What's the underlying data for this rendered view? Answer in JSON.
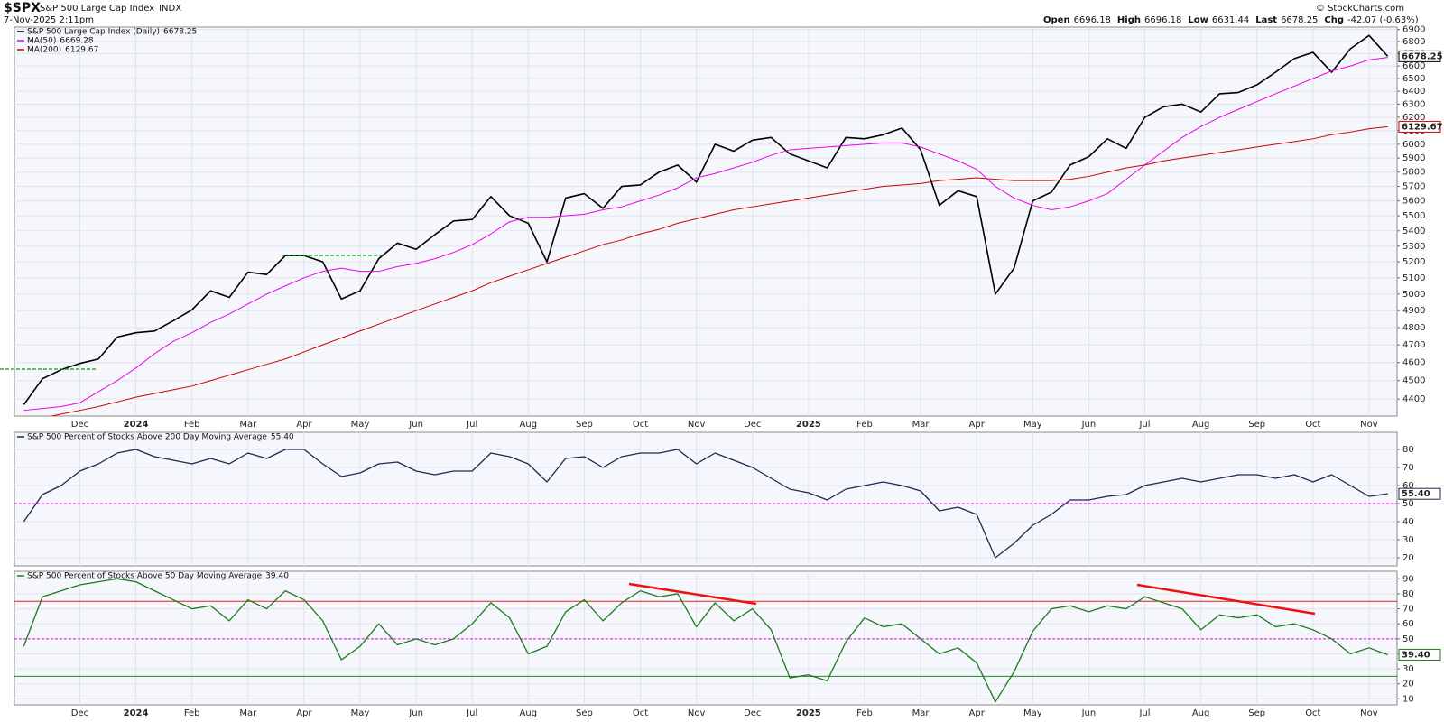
{
  "header": {
    "symbol": "$SPX",
    "name": "S&P 500 Large Cap Index",
    "exchange": "INDX",
    "timestamp": "7-Nov-2025 2:11pm",
    "source": "© StockCharts.com",
    "quote": [
      {
        "label": "Open",
        "value": 6696.18
      },
      {
        "label": "High",
        "value": 6696.18
      },
      {
        "label": "Low",
        "value": 6631.44
      },
      {
        "label": "Last",
        "value": 6678.25
      },
      {
        "label": "Chg",
        "value": "-42.07 (-0.63%)"
      }
    ]
  },
  "chart_data": [
    {
      "type": "line",
      "log": true,
      "grid": true,
      "categories": [
        null,
        null,
        null,
        "Dec",
        null,
        null,
        "2024",
        null,
        null,
        "Feb",
        null,
        null,
        "Mar",
        null,
        null,
        "Apr",
        null,
        null,
        "May",
        null,
        null,
        "Jun",
        null,
        null,
        "Jul",
        null,
        null,
        "Aug",
        null,
        null,
        "Sep",
        null,
        null,
        "Oct",
        null,
        null,
        "Nov",
        null,
        null,
        "Dec",
        null,
        null,
        "2025",
        null,
        null,
        "Feb",
        null,
        null,
        "Mar",
        null,
        null,
        "Apr",
        null,
        null,
        "May",
        null,
        null,
        "Jun",
        null,
        null,
        "Jul",
        null,
        null,
        "Aug",
        null,
        null,
        "Sep",
        null,
        null,
        "Oct",
        null,
        null,
        "Nov",
        null
      ],
      "ylim": [
        4310,
        6920
      ],
      "yticks": [
        4400,
        4500,
        4600,
        4700,
        4800,
        4900,
        5000,
        5100,
        5200,
        5300,
        5400,
        5500,
        5600,
        5700,
        5800,
        5900,
        6000,
        6100,
        6200,
        6300,
        6400,
        6500,
        6600,
        6700,
        6800,
        6900
      ],
      "series": [
        {
          "name": "S&P 500 Large Cap Index (Daily)",
          "color": "#000000",
          "width": 1.6,
          "values": [
            4370,
            4510,
            4560,
            4595,
            4620,
            4745,
            4770,
            4780,
            4840,
            4905,
            5020,
            4980,
            5135,
            5120,
            5240,
            5240,
            5200,
            4970,
            5020,
            5220,
            5320,
            5280,
            5375,
            5465,
            5475,
            5630,
            5500,
            5450,
            5200,
            5620,
            5650,
            5550,
            5700,
            5710,
            5800,
            5850,
            5730,
            6000,
            5950,
            6030,
            6050,
            5930,
            5880,
            5830,
            6050,
            6040,
            6070,
            6120,
            5960,
            5570,
            5670,
            5630,
            5000,
            5160,
            5600,
            5660,
            5850,
            5910,
            6040,
            5970,
            6200,
            6280,
            6300,
            6240,
            6380,
            6390,
            6450,
            6550,
            6660,
            6710,
            6550,
            6740,
            6850,
            6678.25
          ]
        },
        {
          "name": "MA(50)",
          "color": "#ee00ee",
          "width": 1,
          "values": [
            4340,
            4350,
            4360,
            4380,
            4440,
            4500,
            4570,
            4650,
            4720,
            4770,
            4830,
            4880,
            4940,
            5000,
            5050,
            5100,
            5140,
            5160,
            5140,
            5140,
            5170,
            5190,
            5220,
            5260,
            5310,
            5380,
            5460,
            5490,
            5490,
            5500,
            5510,
            5540,
            5560,
            5600,
            5640,
            5690,
            5760,
            5790,
            5830,
            5870,
            5920,
            5960,
            5970,
            5980,
            5990,
            6000,
            6010,
            6010,
            5980,
            5930,
            5880,
            5820,
            5700,
            5620,
            5570,
            5540,
            5560,
            5600,
            5650,
            5750,
            5850,
            5950,
            6050,
            6130,
            6200,
            6260,
            6320,
            6380,
            6440,
            6500,
            6560,
            6600,
            6650,
            6669.28
          ]
        },
        {
          "name": "MA(200)",
          "color": "#cc0000",
          "width": 1,
          "values": [
            4290,
            4300,
            4320,
            4340,
            4360,
            4385,
            4410,
            4430,
            4450,
            4470,
            4500,
            4530,
            4560,
            4590,
            4620,
            4660,
            4700,
            4740,
            4780,
            4820,
            4860,
            4900,
            4940,
            4980,
            5020,
            5070,
            5110,
            5150,
            5190,
            5230,
            5270,
            5310,
            5340,
            5380,
            5410,
            5450,
            5480,
            5510,
            5540,
            5560,
            5580,
            5600,
            5620,
            5640,
            5660,
            5680,
            5700,
            5710,
            5720,
            5740,
            5750,
            5760,
            5750,
            5740,
            5740,
            5740,
            5750,
            5770,
            5800,
            5830,
            5850,
            5880,
            5900,
            5920,
            5940,
            5960,
            5980,
            6000,
            6020,
            6040,
            6070,
            6090,
            6115,
            6129.67
          ]
        }
      ]
    },
    {
      "type": "line",
      "grid": true,
      "ylim": [
        15.5,
        89.5
      ],
      "yticks": [
        20,
        30,
        40,
        50,
        60,
        70,
        80
      ],
      "ref_lines": [
        {
          "value": 50,
          "color": "#ee00ee",
          "dash": true
        }
      ],
      "series": [
        {
          "name": "S&P 500 Percent of Stocks Above 200 Day Moving Average",
          "color": "#1f2a4d",
          "width": 1.3,
          "values": [
            40,
            55,
            60,
            68,
            72,
            78,
            80,
            76,
            74,
            72,
            75,
            72,
            78,
            75,
            80,
            80,
            72,
            65,
            67,
            72,
            73,
            68,
            66,
            68,
            68,
            78,
            76,
            72,
            62,
            75,
            76,
            70,
            76,
            78,
            78,
            80,
            72,
            78,
            74,
            70,
            64,
            58,
            56,
            52,
            58,
            60,
            62,
            60,
            57,
            46,
            48,
            44,
            20,
            28,
            38,
            44,
            52,
            52,
            54,
            55,
            60,
            62,
            64,
            62,
            64,
            66,
            66,
            64,
            66,
            62,
            66,
            60,
            54,
            55.4
          ],
          "value_labels": [
            null,
            null,
            null,
            null,
            null,
            null,
            null,
            null,
            null,
            null,
            null,
            null,
            null,
            null,
            null,
            null,
            null,
            null,
            null,
            null,
            null,
            null,
            null,
            null,
            null,
            null,
            null,
            null,
            null,
            null,
            null,
            null,
            null,
            null,
            null,
            null,
            null,
            null,
            null,
            null,
            null,
            null,
            null,
            null,
            null,
            null,
            null,
            null,
            null,
            null,
            null,
            null,
            null,
            null,
            null,
            null,
            null,
            null,
            null,
            null,
            null,
            null,
            null,
            null,
            null,
            null,
            null,
            null,
            null,
            null,
            null,
            null,
            null,
            "55.40"
          ]
        }
      ]
    },
    {
      "type": "line",
      "grid": true,
      "categories": [
        null,
        null,
        null,
        "Dec",
        null,
        null,
        "2024",
        null,
        null,
        "Feb",
        null,
        null,
        "Mar",
        null,
        null,
        "Apr",
        null,
        null,
        "May",
        null,
        null,
        "Jun",
        null,
        null,
        "Jul",
        null,
        null,
        "Aug",
        null,
        null,
        "Sep",
        null,
        null,
        "Oct",
        null,
        null,
        "Nov",
        null,
        null,
        "Dec",
        null,
        null,
        "2025",
        null,
        null,
        "Feb",
        null,
        null,
        "Mar",
        null,
        null,
        "Apr",
        null,
        null,
        "May",
        null,
        null,
        "Jun",
        null,
        null,
        "Jul",
        null,
        null,
        "Aug",
        null,
        null,
        "Sep",
        null,
        null,
        "Oct",
        null,
        null,
        "Nov",
        null
      ],
      "ylim": [
        6,
        95
      ],
      "yticks": [
        10,
        20,
        30,
        40,
        50,
        60,
        70,
        80,
        90
      ],
      "ref_lines": [
        {
          "value": 75,
          "color": "#dd2222",
          "dash": false
        },
        {
          "value": 50,
          "color": "#ee00ee",
          "dash": true
        },
        {
          "value": 25,
          "color": "#228822",
          "dash": false
        }
      ],
      "series": [
        {
          "name": "S&P 500 Percent of Stocks Above 50 Day Moving Average",
          "color": "#1e7a1e",
          "width": 1.3,
          "values": [
            45,
            78,
            82,
            86,
            88,
            90,
            88,
            82,
            76,
            70,
            72,
            62,
            76,
            70,
            82,
            76,
            62,
            36,
            45,
            60,
            46,
            50,
            46,
            50,
            60,
            74,
            64,
            40,
            45,
            68,
            76,
            62,
            74,
            82,
            78,
            80,
            58,
            74,
            62,
            70,
            56,
            24,
            26,
            22,
            48,
            64,
            58,
            60,
            50,
            40,
            44,
            34,
            8,
            28,
            55,
            70,
            72,
            68,
            72,
            70,
            78,
            74,
            70,
            56,
            66,
            64,
            66,
            58,
            60,
            56,
            50,
            40,
            44,
            39.4
          ],
          "value_labels": [
            null,
            null,
            null,
            null,
            null,
            null,
            null,
            null,
            null,
            null,
            null,
            null,
            null,
            null,
            null,
            null,
            null,
            null,
            null,
            null,
            null,
            null,
            null,
            null,
            null,
            null,
            null,
            null,
            null,
            null,
            null,
            null,
            null,
            null,
            null,
            null,
            null,
            null,
            null,
            null,
            null,
            null,
            null,
            null,
            null,
            null,
            null,
            null,
            null,
            null,
            null,
            null,
            null,
            null,
            null,
            null,
            null,
            null,
            null,
            null,
            null,
            null,
            null,
            null,
            null,
            null,
            null,
            null,
            null,
            null,
            null,
            null,
            null,
            "39.40"
          ]
        }
      ]
    }
  ]
}
